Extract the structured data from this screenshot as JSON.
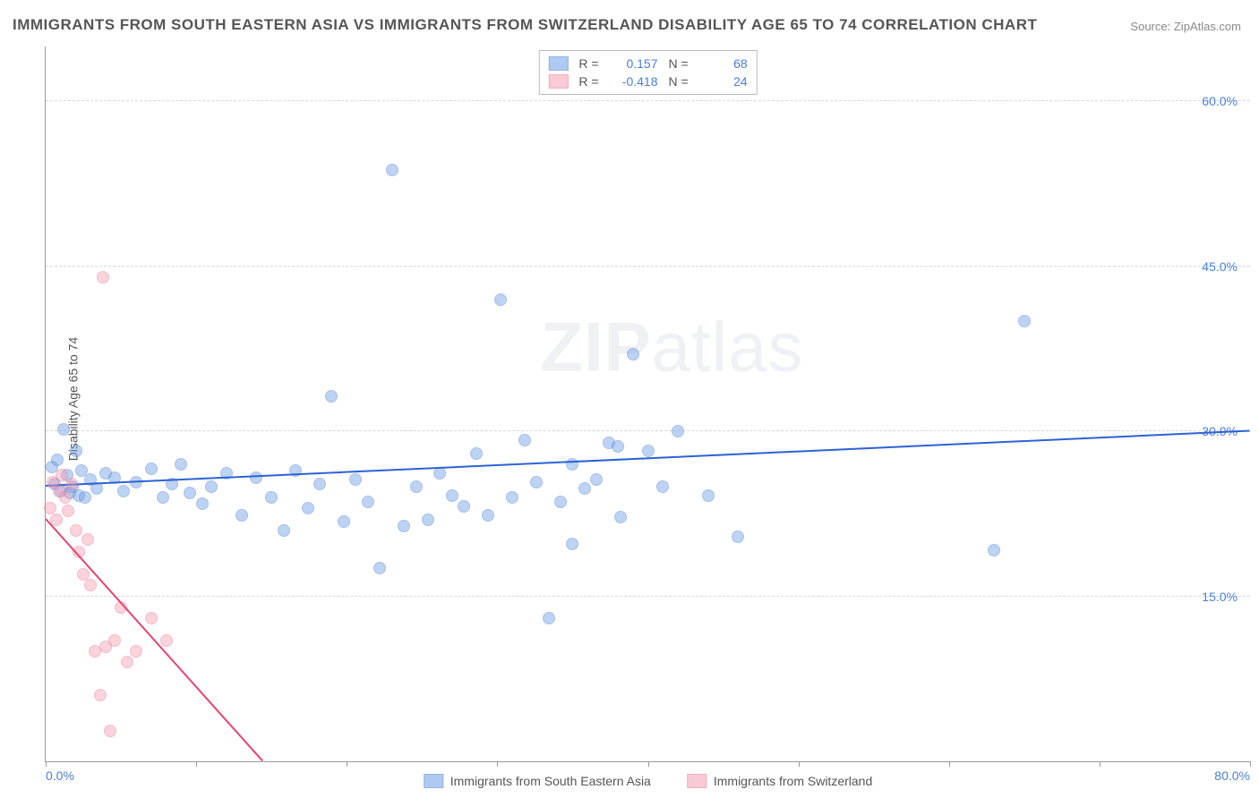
{
  "title": "IMMIGRANTS FROM SOUTH EASTERN ASIA VS IMMIGRANTS FROM SWITZERLAND DISABILITY AGE 65 TO 74 CORRELATION CHART",
  "source_label": "Source:",
  "source_name": "ZipAtlas.com",
  "y_axis_label": "Disability Age 65 to 74",
  "watermark": "ZIPatlas",
  "chart": {
    "type": "scatter",
    "xlim": [
      0,
      80
    ],
    "ylim": [
      0,
      65
    ],
    "x_ticks": [
      0,
      10,
      20,
      30,
      40,
      50,
      60,
      70,
      80
    ],
    "x_tick_labels": {
      "0": "0.0%",
      "80": "80.0%"
    },
    "y_ticks": [
      15,
      30,
      45,
      60
    ],
    "y_tick_labels": {
      "15": "15.0%",
      "30": "30.0%",
      "45": "45.0%",
      "60": "60.0%"
    },
    "background_color": "#ffffff",
    "grid_color": "#d8d8d8",
    "axis_color": "#999999",
    "point_radius": 7,
    "point_opacity": 0.45,
    "series": [
      {
        "key": "sea",
        "name": "Immigrants from South Eastern Asia",
        "fill_color": "#6fa0e8",
        "stroke_color": "#3f73c8",
        "R": "0.157",
        "N": "68",
        "trend": {
          "x1": 0,
          "y1": 25,
          "x2": 80,
          "y2": 30,
          "color": "#2c63d4",
          "width": 2
        },
        "points": [
          [
            0.4,
            26.8
          ],
          [
            0.6,
            25.2
          ],
          [
            0.8,
            27.4
          ],
          [
            1.0,
            24.6
          ],
          [
            1.2,
            30.2
          ],
          [
            1.4,
            26.0
          ],
          [
            1.6,
            24.4
          ],
          [
            1.8,
            25.0
          ],
          [
            2.0,
            28.2
          ],
          [
            2.2,
            24.2
          ],
          [
            2.4,
            26.4
          ],
          [
            2.6,
            24.0
          ],
          [
            3.0,
            25.6
          ],
          [
            3.4,
            24.8
          ],
          [
            4.0,
            26.2
          ],
          [
            4.6,
            25.8
          ],
          [
            5.2,
            24.6
          ],
          [
            6.0,
            25.4
          ],
          [
            7.0,
            26.6
          ],
          [
            7.8,
            24.0
          ],
          [
            8.4,
            25.2
          ],
          [
            9.0,
            27.0
          ],
          [
            9.6,
            24.4
          ],
          [
            10.4,
            23.4
          ],
          [
            11.0,
            25.0
          ],
          [
            12.0,
            26.2
          ],
          [
            13.0,
            22.4
          ],
          [
            14.0,
            25.8
          ],
          [
            15.0,
            24.0
          ],
          [
            15.8,
            21.0
          ],
          [
            16.6,
            26.4
          ],
          [
            17.4,
            23.0
          ],
          [
            18.2,
            25.2
          ],
          [
            19.0,
            33.2
          ],
          [
            19.8,
            21.8
          ],
          [
            20.6,
            25.6
          ],
          [
            21.4,
            23.6
          ],
          [
            22.2,
            17.6
          ],
          [
            23.0,
            53.8
          ],
          [
            23.8,
            21.4
          ],
          [
            24.6,
            25.0
          ],
          [
            25.4,
            22.0
          ],
          [
            26.2,
            26.2
          ],
          [
            27.0,
            24.2
          ],
          [
            27.8,
            23.2
          ],
          [
            28.6,
            28.0
          ],
          [
            29.4,
            22.4
          ],
          [
            30.2,
            42.0
          ],
          [
            31.0,
            24.0
          ],
          [
            31.8,
            29.2
          ],
          [
            32.6,
            25.4
          ],
          [
            33.4,
            13.0
          ],
          [
            34.2,
            23.6
          ],
          [
            35.0,
            27.0
          ],
          [
            35.8,
            24.8
          ],
          [
            36.6,
            25.6
          ],
          [
            37.4,
            29.0
          ],
          [
            38.2,
            22.2
          ],
          [
            39.0,
            37.0
          ],
          [
            40.0,
            28.2
          ],
          [
            41.0,
            25.0
          ],
          [
            42.0,
            30.0
          ],
          [
            44.0,
            24.2
          ],
          [
            46.0,
            20.4
          ],
          [
            63.0,
            19.2
          ],
          [
            65.0,
            40.0
          ],
          [
            35.0,
            19.8
          ],
          [
            38.0,
            28.6
          ]
        ]
      },
      {
        "key": "swiss",
        "name": "Immigrants from Switzerland",
        "fill_color": "#f5a0b4",
        "stroke_color": "#e76b8a",
        "R": "-0.418",
        "N": "24",
        "trend": {
          "x1": 0,
          "y1": 22,
          "x2": 14.4,
          "y2": 0,
          "color": "#e5446e",
          "width": 2
        },
        "points": [
          [
            0.3,
            23.0
          ],
          [
            0.5,
            25.4
          ],
          [
            0.7,
            22.0
          ],
          [
            0.9,
            24.6
          ],
          [
            1.1,
            26.0
          ],
          [
            1.3,
            24.0
          ],
          [
            1.5,
            22.8
          ],
          [
            1.7,
            25.2
          ],
          [
            2.0,
            21.0
          ],
          [
            2.2,
            19.0
          ],
          [
            2.5,
            17.0
          ],
          [
            2.8,
            20.2
          ],
          [
            3.0,
            16.0
          ],
          [
            3.3,
            10.0
          ],
          [
            3.6,
            6.0
          ],
          [
            4.0,
            10.4
          ],
          [
            4.3,
            2.8
          ],
          [
            4.6,
            11.0
          ],
          [
            5.0,
            14.0
          ],
          [
            5.4,
            9.0
          ],
          [
            6.0,
            10.0
          ],
          [
            7.0,
            13.0
          ],
          [
            8.0,
            11.0
          ],
          [
            3.8,
            44.0
          ]
        ]
      }
    ]
  },
  "legend_top": [
    {
      "series": "sea",
      "R_label": "R =",
      "R_value": "0.157",
      "N_label": "N =",
      "N_value": "68"
    },
    {
      "series": "swiss",
      "R_label": "R =",
      "R_value": "-0.418",
      "N_label": "N =",
      "N_value": "24"
    }
  ],
  "legend_bottom": [
    {
      "series": "sea",
      "label": "Immigrants from South Eastern Asia"
    },
    {
      "series": "swiss",
      "label": "Immigrants from Switzerland"
    }
  ]
}
